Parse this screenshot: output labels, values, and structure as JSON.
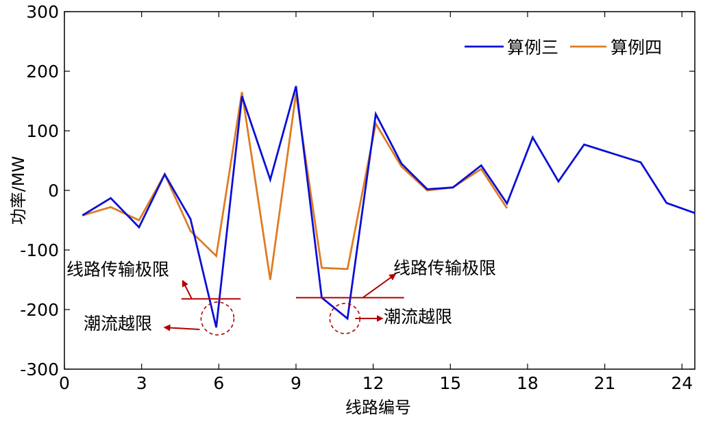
{
  "chart_data": {
    "type": "line",
    "xlabel": "线路编号",
    "ylabel": "功率/MW",
    "xlim": [
      0,
      24.5
    ],
    "ylim": [
      -300,
      300
    ],
    "xticks": [
      0,
      3,
      6,
      9,
      12,
      15,
      18,
      21,
      24
    ],
    "yticks": [
      -300,
      -200,
      -100,
      0,
      100,
      200,
      300
    ],
    "grid": false,
    "legend_position": "top-right",
    "series": [
      {
        "name": "算例三",
        "color": "#0a0fd6",
        "x": [
          0.7,
          1.8,
          2.9,
          3.9,
          4.9,
          5.9,
          6.9,
          8.0,
          9.0,
          10.0,
          11.0,
          12.1,
          13.1,
          14.1,
          15.1,
          16.2,
          17.2,
          18.2,
          19.2,
          20.2,
          22.4,
          23.4,
          24.5
        ],
        "y": [
          -42,
          -13,
          -62,
          27,
          -48,
          -230,
          158,
          18,
          175,
          -180,
          -215,
          128,
          45,
          2,
          5,
          42,
          -22,
          89,
          15,
          77,
          47,
          -21,
          -38
        ]
      },
      {
        "name": "算例四",
        "color": "#de7c20",
        "x": [
          0.7,
          1.8,
          2.9,
          3.9,
          4.9,
          5.9,
          6.9,
          8.0,
          9.0,
          10.0,
          11.0,
          12.1,
          13.1,
          14.1,
          15.1,
          16.2,
          17.2
        ],
        "y": [
          -42,
          -28,
          -50,
          27,
          -68,
          -110,
          165,
          -150,
          163,
          -130,
          -132,
          112,
          40,
          0,
          5,
          36,
          -30
        ]
      }
    ],
    "annotations": [
      {
        "id": "limit-left",
        "text": "线路传输极限",
        "color": "#b00000",
        "x_range": [
          4.55,
          6.85
        ],
        "y": -182
      },
      {
        "id": "limit-right",
        "text": "线路传输极限",
        "color": "#b00000",
        "x_range": [
          9.0,
          13.2
        ],
        "y": -180
      },
      {
        "id": "overflow-left",
        "text": "潮流越限",
        "color": "#b00000",
        "circle_center": [
          5.95,
          -215
        ]
      },
      {
        "id": "overflow-right",
        "text": "潮流越限",
        "color": "#b00000",
        "circle_center": [
          10.9,
          -215
        ]
      }
    ]
  }
}
